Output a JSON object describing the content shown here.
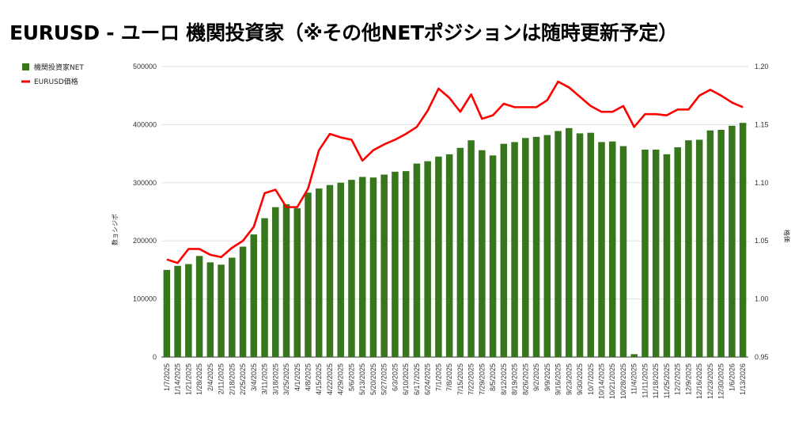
{
  "title": "EURUSD - ユーロ 機関投資家（※その他NETポジションは随時更新予定）",
  "chart_data": {
    "type": "bar+line",
    "title": "EURUSD - ユーロ 機関投資家（※その他NETポジションは随時更新予定）",
    "categories": [
      "1/7/2025",
      "1/14/2025",
      "1/21/2025",
      "1/28/2025",
      "2/4/2025",
      "2/11/2025",
      "2/18/2025",
      "2/25/2025",
      "3/4/2025",
      "3/11/2025",
      "3/18/2025",
      "3/25/2025",
      "4/1/2025",
      "4/8/2025",
      "4/15/2025",
      "4/22/2025",
      "4/29/2025",
      "5/6/2025",
      "5/13/2025",
      "5/20/2025",
      "5/27/2025",
      "6/3/2025",
      "6/10/2025",
      "6/17/2025",
      "6/24/2025",
      "7/1/2025",
      "7/8/2025",
      "7/15/2025",
      "7/22/2025",
      "7/29/2025",
      "8/5/2025",
      "8/12/2025",
      "8/19/2025",
      "8/26/2025",
      "9/2/2025",
      "9/9/2025",
      "9/16/2025",
      "9/23/2025",
      "9/30/2025",
      "10/7/2025",
      "10/14/2025",
      "10/21/2025",
      "10/28/2025",
      "11/4/2025",
      "11/11/2025",
      "11/18/2025",
      "11/25/2025",
      "12/2/2025",
      "12/9/2025",
      "12/16/2025",
      "12/23/2025",
      "12/30/2025",
      "1/6/2026",
      "1/13/2026"
    ],
    "series": [
      {
        "name": "機関投資家NET",
        "type": "bar",
        "axis": "left",
        "color": "#38761d",
        "values": [
          150000,
          157000,
          160000,
          174000,
          163000,
          159000,
          171000,
          190000,
          211000,
          239000,
          258000,
          263000,
          256000,
          283000,
          290000,
          296000,
          300000,
          305000,
          310000,
          309000,
          314000,
          319000,
          320000,
          333000,
          337000,
          345000,
          349000,
          360000,
          373000,
          356000,
          347000,
          367000,
          370000,
          377000,
          379000,
          382000,
          389000,
          394000,
          385000,
          386000,
          370000,
          371000,
          363000,
          5000,
          357000,
          357000,
          349000,
          361000,
          373000,
          374000,
          390000,
          391000,
          398000,
          403000
        ]
      },
      {
        "name": "EURUSD価格",
        "type": "line",
        "axis": "right",
        "color": "#ff0000",
        "values": [
          1.034,
          1.031,
          1.043,
          1.043,
          1.038,
          1.036,
          1.044,
          1.05,
          1.062,
          1.091,
          1.094,
          1.079,
          1.079,
          1.095,
          1.128,
          1.142,
          1.139,
          1.137,
          1.119,
          1.128,
          1.133,
          1.137,
          1.142,
          1.148,
          1.162,
          1.181,
          1.173,
          1.161,
          1.176,
          1.155,
          1.158,
          1.168,
          1.165,
          1.165,
          1.165,
          1.171,
          1.187,
          1.182,
          1.174,
          1.166,
          1.161,
          1.161,
          1.166,
          1.148,
          1.159,
          1.159,
          1.158,
          1.163,
          1.163,
          1.175,
          1.18,
          1.175,
          1.169,
          1.165
        ]
      }
    ],
    "y_left": {
      "label": "数ョシジポ",
      "ylim": [
        0,
        500000
      ],
      "ticks": [
        "0",
        "100000",
        "200000",
        "300000",
        "400000",
        "500000"
      ]
    },
    "y_right": {
      "label": "格価",
      "ylim": [
        0.95,
        1.2
      ],
      "ticks": [
        "0.95",
        "1.00",
        "1.05",
        "1.10",
        "1.15",
        "1.20"
      ]
    },
    "grid": true,
    "legend_position": "top-left"
  }
}
